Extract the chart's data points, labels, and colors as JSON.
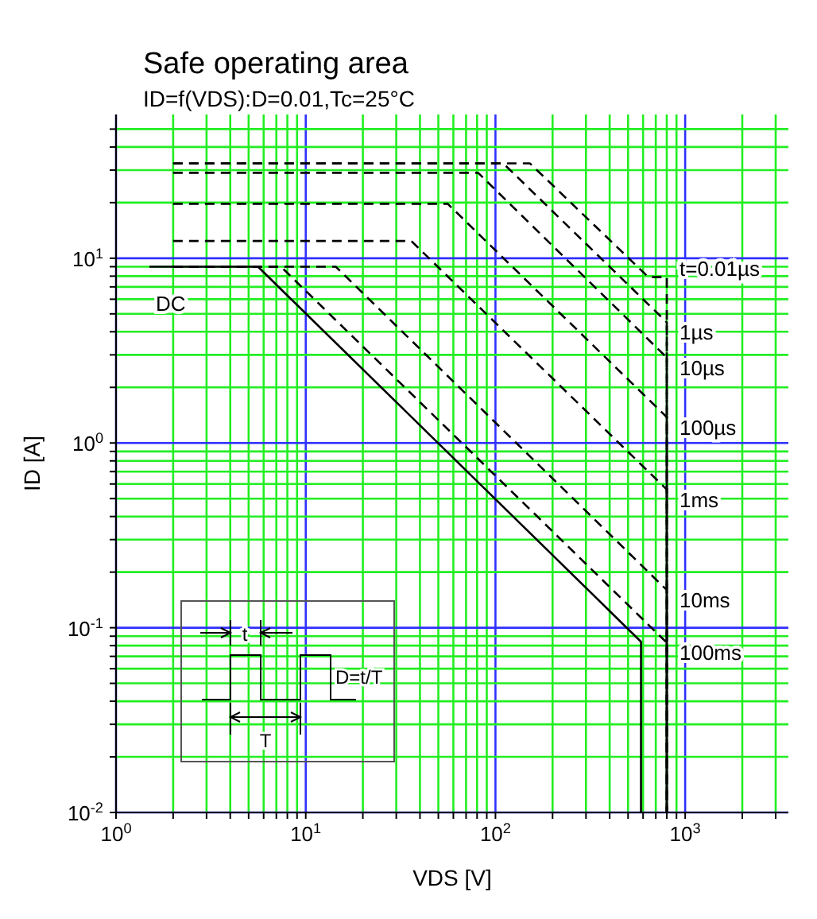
{
  "chart_data": {
    "type": "line",
    "title": "Safe operating area",
    "subtitle": "ID=f(VDS):D=0.01,Tc=25°C",
    "xlabel": "VDS [V]",
    "ylabel": "ID [A]",
    "log": "xy",
    "grid": true,
    "legend": false,
    "marker": "none",
    "xlim": [
      1,
      3500
    ],
    "ylim": [
      0.01,
      60
    ],
    "xticks": [
      {
        "value": 1,
        "label": "10$^{0}$"
      },
      {
        "value": 2,
        "label": null
      },
      {
        "value": 3,
        "label": null
      },
      {
        "value": 4,
        "label": null
      },
      {
        "value": 5,
        "label": null
      },
      {
        "value": 6,
        "label": null
      },
      {
        "value": 7,
        "label": null
      },
      {
        "value": 8,
        "label": null
      },
      {
        "value": 9,
        "label": null
      },
      {
        "value": 10,
        "label": "10$^{1}$"
      },
      {
        "value": 20,
        "label": null
      },
      {
        "value": 30,
        "label": null
      },
      {
        "value": 40,
        "label": null
      },
      {
        "value": 50,
        "label": null
      },
      {
        "value": 60,
        "label": null
      },
      {
        "value": 70,
        "label": null
      },
      {
        "value": 80,
        "label": null
      },
      {
        "value": 90,
        "label": null
      },
      {
        "value": 100,
        "label": "10$^{2}$"
      },
      {
        "value": 200,
        "label": null
      },
      {
        "value": 300,
        "label": null
      },
      {
        "value": 400,
        "label": null
      },
      {
        "value": 500,
        "label": null
      },
      {
        "value": 600,
        "label": null
      },
      {
        "value": 700,
        "label": null
      },
      {
        "value": 800,
        "label": null
      },
      {
        "value": 900,
        "label": null
      },
      {
        "value": 1000,
        "label": "10$^{3}$"
      },
      {
        "value": 2000,
        "label": null
      },
      {
        "value": 3000,
        "label": null
      }
    ],
    "yticks": [
      {
        "value": 0.01,
        "label": "10$^{-2}$"
      },
      {
        "value": 0.02,
        "label": null
      },
      {
        "value": 0.03,
        "label": null
      },
      {
        "value": 0.04,
        "label": null
      },
      {
        "value": 0.05,
        "label": null
      },
      {
        "value": 0.06,
        "label": null
      },
      {
        "value": 0.07,
        "label": null
      },
      {
        "value": 0.08,
        "label": null
      },
      {
        "value": 0.09,
        "label": null
      },
      {
        "value": 0.1,
        "label": "10$^{-1}$"
      },
      {
        "value": 0.2,
        "label": null
      },
      {
        "value": 0.3,
        "label": null
      },
      {
        "value": 0.4,
        "label": null
      },
      {
        "value": 0.5,
        "label": null
      },
      {
        "value": 0.6,
        "label": null
      },
      {
        "value": 0.7,
        "label": null
      },
      {
        "value": 0.8,
        "label": null
      },
      {
        "value": 0.9,
        "label": null
      },
      {
        "value": 1,
        "label": "10$^{0}$"
      },
      {
        "value": 2,
        "label": null
      },
      {
        "value": 3,
        "label": null
      },
      {
        "value": 4,
        "label": null
      },
      {
        "value": 5,
        "label": null
      },
      {
        "value": 6,
        "label": null
      },
      {
        "value": 7,
        "label": null
      },
      {
        "value": 8,
        "label": null
      },
      {
        "value": 9,
        "label": null
      },
      {
        "value": 10,
        "label": "10$^{1}$"
      },
      {
        "value": 20,
        "label": null
      },
      {
        "value": 30,
        "label": null
      },
      {
        "value": 40,
        "label": null
      },
      {
        "value": 50,
        "label": null
      }
    ],
    "series": [
      {
        "name": "DC",
        "color": "#000000",
        "line_style": "solid",
        "x": [
          1.5,
          5.6,
          585,
          585
        ],
        "values": [
          9,
          9,
          0.084,
          0.01
        ]
      },
      {
        "name": "100ms",
        "color": "#000000",
        "line_style": "dashed",
        "x": [
          2,
          7.4,
          800,
          800
        ],
        "values": [
          9,
          9,
          0.083,
          0.01
        ]
      },
      {
        "name": "10ms",
        "color": "#000000",
        "line_style": "dashed",
        "x": [
          2,
          14.4,
          800,
          800
        ],
        "values": [
          9,
          9,
          0.16,
          0.01
        ]
      },
      {
        "name": "1ms",
        "color": "#000000",
        "line_style": "dashed",
        "x": [
          2,
          36,
          800,
          800
        ],
        "values": [
          12.4,
          12.4,
          0.56,
          0.01
        ]
      },
      {
        "name": "100µs",
        "color": "#000000",
        "line_style": "dashed",
        "x": [
          2,
          56,
          800,
          800
        ],
        "values": [
          19.7,
          19.7,
          1.38,
          0.01
        ]
      },
      {
        "name": "10µs",
        "color": "#000000",
        "line_style": "dashed",
        "x": [
          2,
          81,
          800,
          800
        ],
        "values": [
          29,
          29,
          2.9,
          0.01
        ]
      },
      {
        "name": "1µs",
        "color": "#000000",
        "line_style": "dashed",
        "x": [
          2,
          110,
          800,
          800
        ],
        "values": [
          32.6,
          32.6,
          4.5,
          0.01
        ]
      },
      {
        "name": "t=0.01µs",
        "color": "#000000",
        "line_style": "dashed",
        "x": [
          2,
          152,
          640,
          800,
          800
        ],
        "values": [
          32.6,
          32.6,
          7.9,
          7.9,
          0.01
        ]
      }
    ],
    "annotations": [
      "t",
      "T",
      "D=t/T"
    ]
  }
}
